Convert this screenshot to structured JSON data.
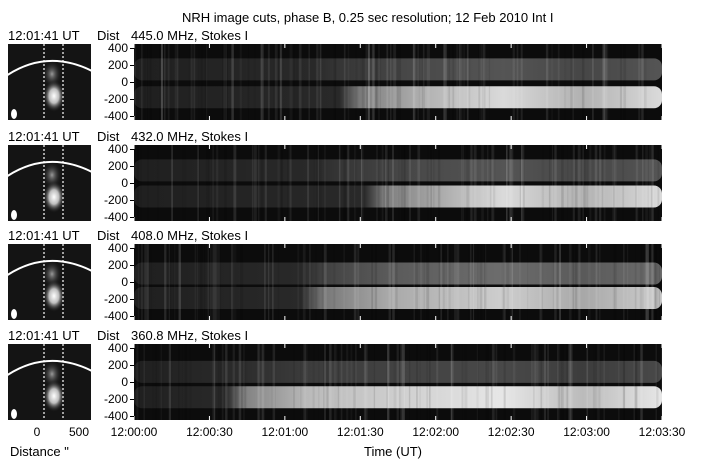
{
  "figure": {
    "title": "NRH image cuts, phase B, 0.25 sec resolution; 12 Feb 2010 Int I",
    "ylabel": "Dist",
    "xlabel_time": "Time (UT)",
    "xlabel_distance": "Distance \""
  },
  "chart_data": {
    "type": "heatmap",
    "x_axis": {
      "label": "Time (UT)",
      "range": [
        "12:00:00",
        "12:03:30"
      ],
      "ticks": [
        "12:00:00",
        "12:00:30",
        "12:01:00",
        "12:01:30",
        "12:02:00",
        "12:02:30",
        "12:03:00",
        "12:03:30"
      ]
    },
    "y_axis": {
      "label": "Dist",
      "range": [
        -450,
        450
      ],
      "ticks": [
        "400",
        "200",
        "0",
        "-200",
        "-400"
      ]
    },
    "thumb_axis": {
      "label": "Distance \"",
      "ticks": [
        "0",
        "500"
      ]
    },
    "panels": [
      {
        "timestamp": "12:01:41 UT",
        "label": "445.0 MHz, Stokes I",
        "bands": [
          {
            "center": -180,
            "peak_intensity": 0.85,
            "onset": "12:01:30"
          },
          {
            "center": 150,
            "peak_intensity": 0.3,
            "onset": "12:01:20"
          }
        ]
      },
      {
        "timestamp": "12:01:41 UT",
        "label": "432.0 MHz, Stokes I",
        "bands": [
          {
            "center": -160,
            "peak_intensity": 0.85,
            "onset": "12:01:40"
          },
          {
            "center": 150,
            "peak_intensity": 0.3,
            "onset": "12:01:20"
          }
        ]
      },
      {
        "timestamp": "12:01:41 UT",
        "label": "408.0 MHz, Stokes I",
        "bands": [
          {
            "center": -190,
            "peak_intensity": 0.8,
            "onset": "12:01:15"
          },
          {
            "center": 100,
            "peak_intensity": 0.4,
            "onset": "12:01:15"
          }
        ]
      },
      {
        "timestamp": "12:01:41 UT",
        "label": "360.8 MHz, Stokes I",
        "bands": [
          {
            "center": -180,
            "peak_intensity": 0.9,
            "onset": "12:00:45"
          },
          {
            "center": 120,
            "peak_intensity": 0.25,
            "onset": "12:00:45"
          }
        ]
      }
    ]
  }
}
